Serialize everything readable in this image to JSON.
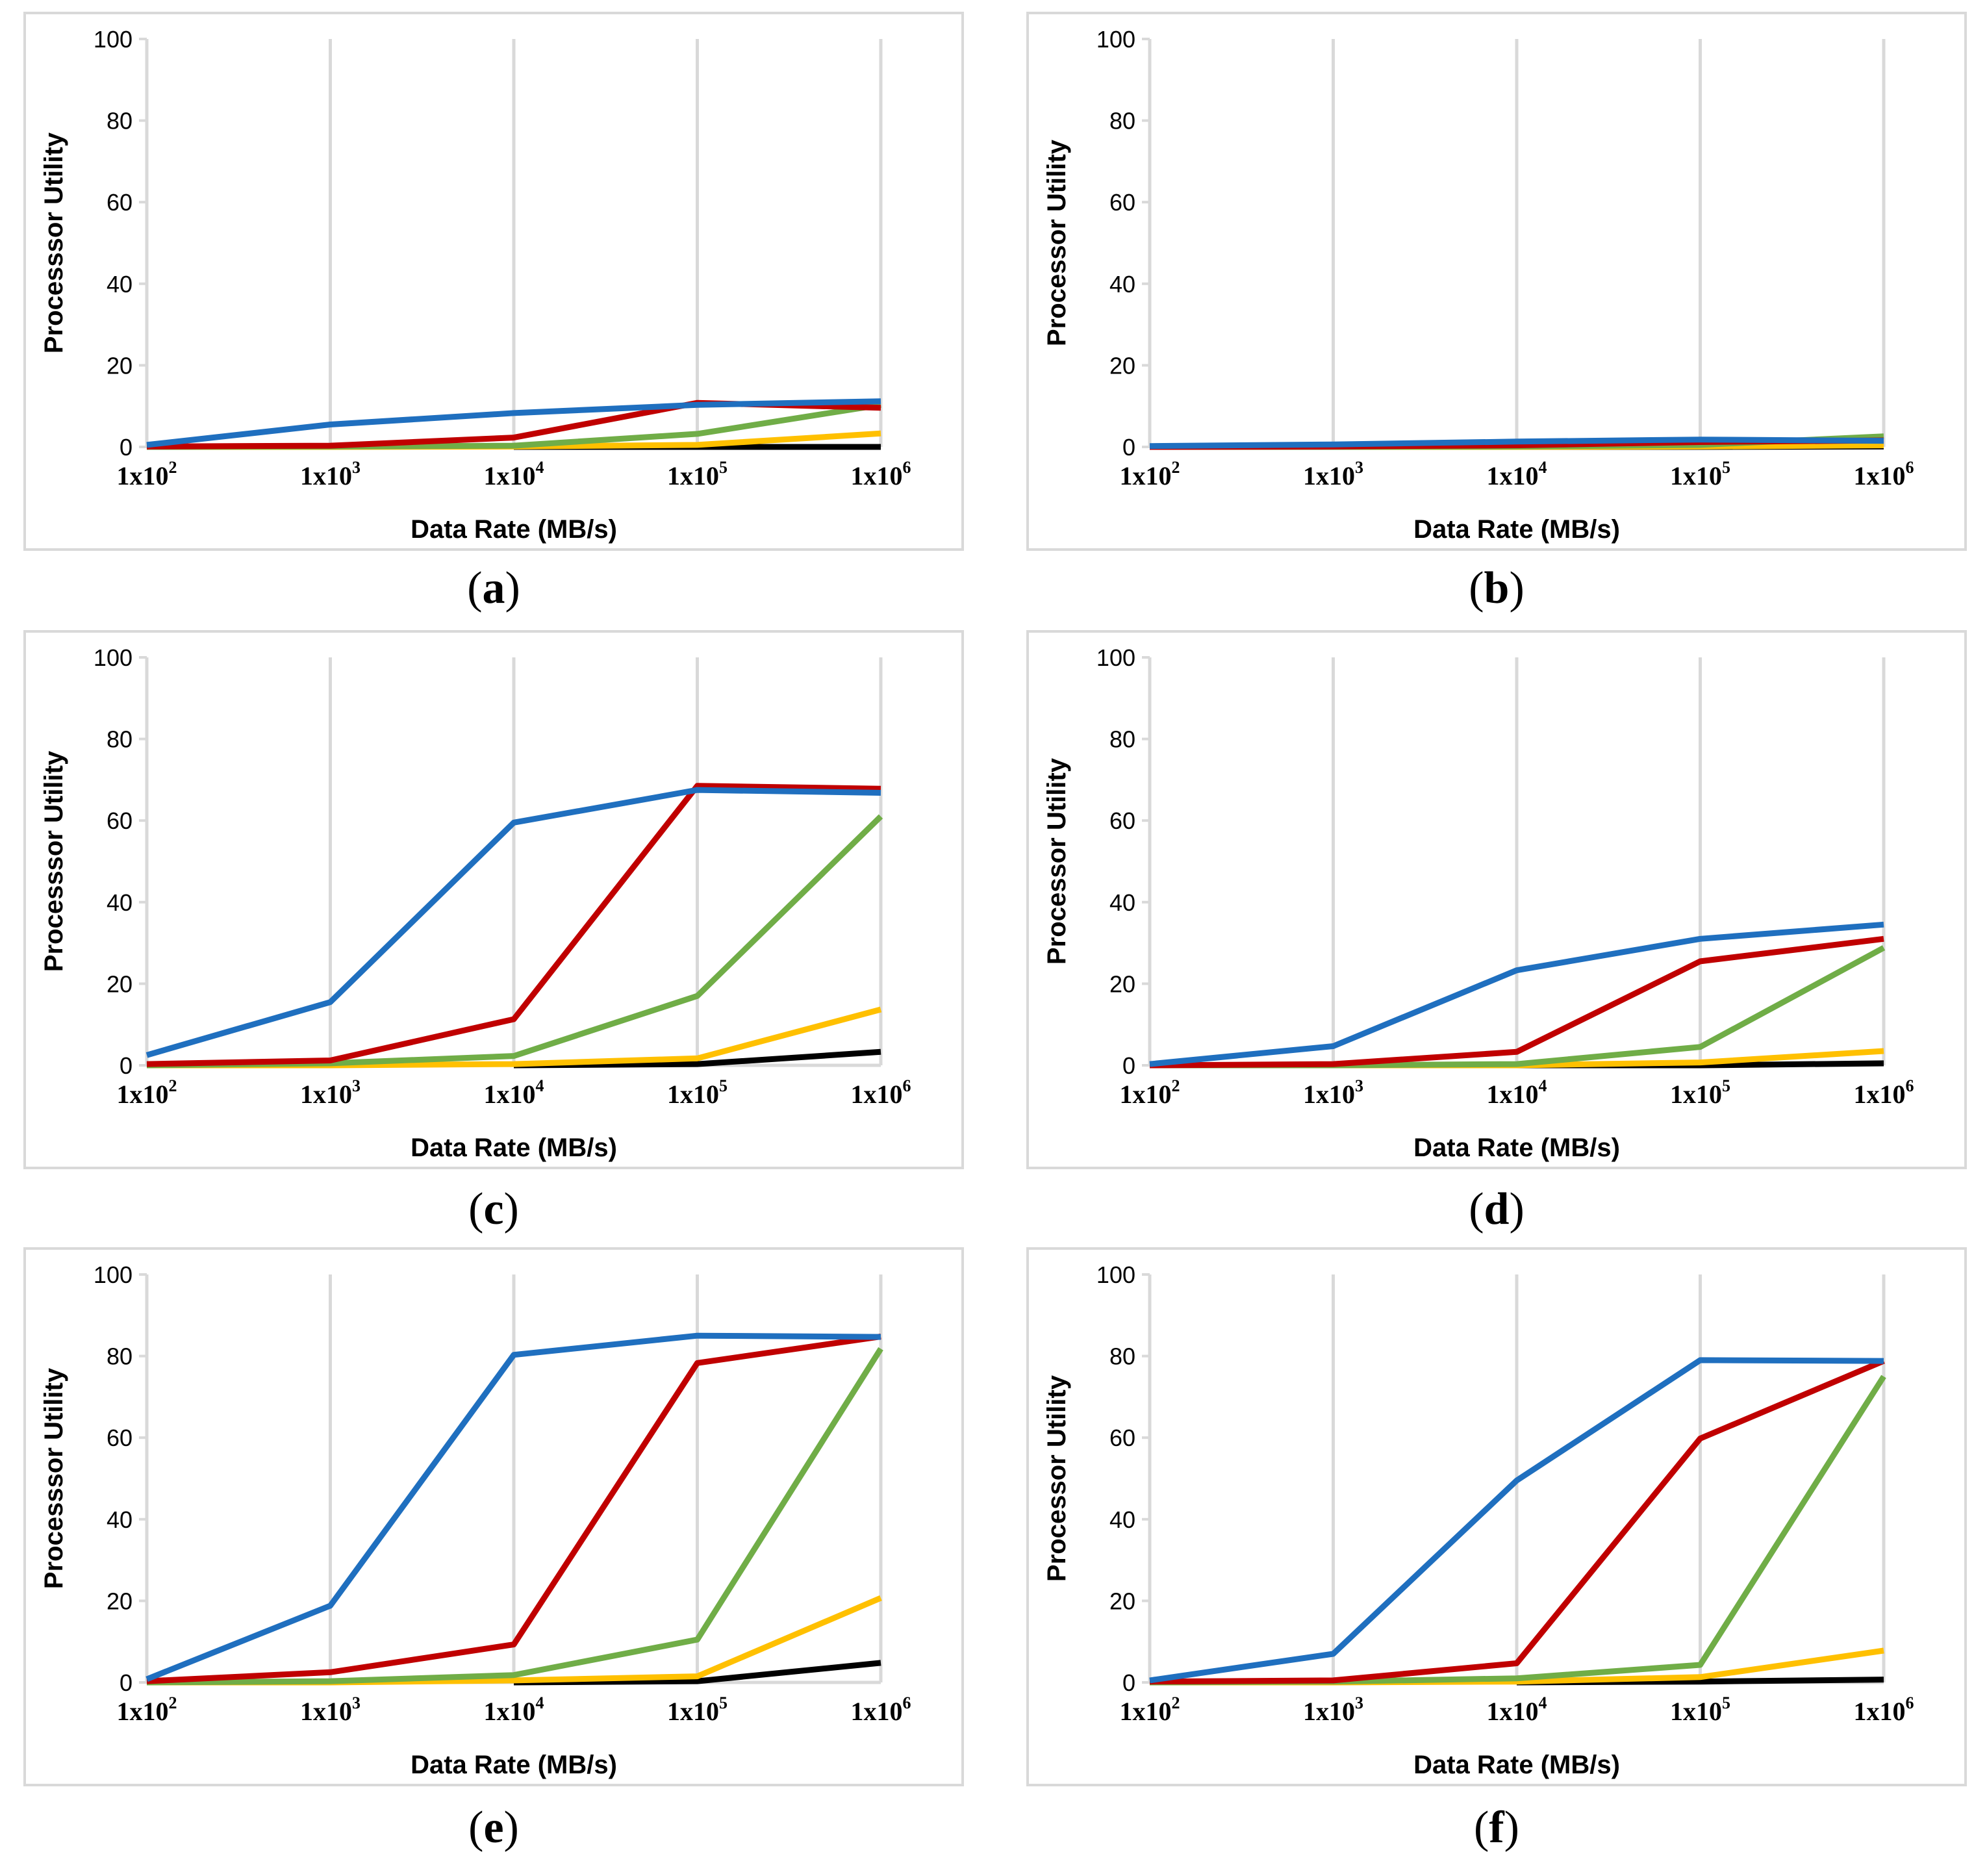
{
  "colors": {
    "blue": "#1f6fbf",
    "red": "#c00000",
    "green": "#70ad47",
    "yellow": "#ffc000",
    "black": "#000000",
    "grid": "#d9d9d9",
    "frame": "#d9d9d9"
  },
  "chart_data": [
    {
      "id": "a",
      "caption_letter": "a",
      "type": "line",
      "xlabel": "Data Rate (MB/s)",
      "ylabel": "Processsor Utility",
      "ylim": [
        0,
        100
      ],
      "yticks": [
        0,
        20,
        40,
        60,
        80,
        100
      ],
      "categories": [
        {
          "base": "1x10",
          "exp": "2"
        },
        {
          "base": "1x10",
          "exp": "3"
        },
        {
          "base": "1x10",
          "exp": "4"
        },
        {
          "base": "1x10",
          "exp": "5"
        },
        {
          "base": "1x10",
          "exp": "6"
        }
      ],
      "series": [
        {
          "name": "blue",
          "color": "blue",
          "values": [
            0.5,
            5.5,
            8.3,
            10.3,
            11.2
          ]
        },
        {
          "name": "red",
          "color": "red",
          "values": [
            0.1,
            0.3,
            2.3,
            10.8,
            9.6
          ]
        },
        {
          "name": "green",
          "color": "green",
          "values": [
            0,
            0.1,
            0.3,
            3.2,
            10.3
          ]
        },
        {
          "name": "yellow",
          "color": "yellow",
          "values": [
            0,
            0,
            0.1,
            0.5,
            3.3
          ]
        },
        {
          "name": "black",
          "color": "black",
          "values": [
            null,
            null,
            0,
            0,
            0
          ]
        }
      ]
    },
    {
      "id": "b",
      "caption_letter": "b",
      "type": "line",
      "xlabel": "Data Rate (MB/s)",
      "ylabel": "Processor Utility",
      "ylim": [
        0,
        100
      ],
      "yticks": [
        0,
        20,
        40,
        60,
        80,
        100
      ],
      "categories": [
        {
          "base": "1x10",
          "exp": "2"
        },
        {
          "base": "1x10",
          "exp": "3"
        },
        {
          "base": "1x10",
          "exp": "4"
        },
        {
          "base": "1x10",
          "exp": "5"
        },
        {
          "base": "1x10",
          "exp": "6"
        }
      ],
      "series": [
        {
          "name": "blue",
          "color": "blue",
          "values": [
            0.2,
            0.6,
            1.3,
            1.8,
            1.5
          ]
        },
        {
          "name": "red",
          "color": "red",
          "values": [
            0,
            0.1,
            0.4,
            1.2,
            1.6
          ]
        },
        {
          "name": "green",
          "color": "green",
          "values": [
            0,
            0,
            0.1,
            0.5,
            2.6
          ]
        },
        {
          "name": "yellow",
          "color": "yellow",
          "values": [
            0,
            0,
            0,
            0.1,
            0.4
          ]
        },
        {
          "name": "black",
          "color": "black",
          "values": [
            null,
            null,
            0,
            0,
            0.1
          ]
        }
      ]
    },
    {
      "id": "c",
      "caption_letter": "c",
      "type": "line",
      "xlabel": "Data Rate (MB/s)",
      "ylabel": "Processsor Utility",
      "ylim": [
        0,
        100
      ],
      "yticks": [
        0,
        20,
        40,
        60,
        80,
        100
      ],
      "categories": [
        {
          "base": "1x10",
          "exp": "2"
        },
        {
          "base": "1x10",
          "exp": "3"
        },
        {
          "base": "1x10",
          "exp": "4"
        },
        {
          "base": "1x10",
          "exp": "5"
        },
        {
          "base": "1x10",
          "exp": "6"
        }
      ],
      "series": [
        {
          "name": "blue",
          "color": "blue",
          "values": [
            2.5,
            15.5,
            59.5,
            67.5,
            66.8
          ]
        },
        {
          "name": "red",
          "color": "red",
          "values": [
            0.3,
            1.2,
            11.3,
            68.5,
            67.8
          ]
        },
        {
          "name": "green",
          "color": "green",
          "values": [
            0,
            0.5,
            2.3,
            17,
            61
          ]
        },
        {
          "name": "yellow",
          "color": "yellow",
          "values": [
            0,
            0,
            0.3,
            1.7,
            13.7
          ]
        },
        {
          "name": "black",
          "color": "black",
          "values": [
            null,
            null,
            0,
            0.3,
            3.3
          ]
        }
      ]
    },
    {
      "id": "d",
      "caption_letter": "d",
      "type": "line",
      "xlabel": "Data Rate (MB/s)",
      "ylabel": "Processor Utility",
      "ylim": [
        0,
        100
      ],
      "yticks": [
        0,
        20,
        40,
        60,
        80,
        100
      ],
      "categories": [
        {
          "base": "1x10",
          "exp": "2"
        },
        {
          "base": "1x10",
          "exp": "3"
        },
        {
          "base": "1x10",
          "exp": "4"
        },
        {
          "base": "1x10",
          "exp": "5"
        },
        {
          "base": "1x10",
          "exp": "6"
        }
      ],
      "series": [
        {
          "name": "blue",
          "color": "blue",
          "values": [
            0.3,
            4.7,
            23.3,
            31,
            34.5
          ]
        },
        {
          "name": "red",
          "color": "red",
          "values": [
            0,
            0.3,
            3.3,
            25.5,
            31
          ]
        },
        {
          "name": "green",
          "color": "green",
          "values": [
            0,
            0,
            0.3,
            4.5,
            28.8
          ]
        },
        {
          "name": "yellow",
          "color": "yellow",
          "values": [
            0,
            0,
            0,
            0.7,
            3.5
          ]
        },
        {
          "name": "black",
          "color": "black",
          "values": [
            null,
            null,
            0,
            0,
            0.5
          ]
        }
      ]
    },
    {
      "id": "e",
      "caption_letter": "e",
      "type": "line",
      "xlabel": "Data Rate (MB/s)",
      "ylabel": "Processsor Utility",
      "ylim": [
        0,
        100
      ],
      "yticks": [
        0,
        20,
        40,
        60,
        80,
        100
      ],
      "categories": [
        {
          "base": "1x10",
          "exp": "2"
        },
        {
          "base": "1x10",
          "exp": "3"
        },
        {
          "base": "1x10",
          "exp": "4"
        },
        {
          "base": "1x10",
          "exp": "5"
        },
        {
          "base": "1x10",
          "exp": "6"
        }
      ],
      "series": [
        {
          "name": "blue",
          "color": "blue",
          "values": [
            0.8,
            18.8,
            80.3,
            85,
            84.7
          ]
        },
        {
          "name": "red",
          "color": "red",
          "values": [
            0.3,
            2.5,
            9.3,
            78.3,
            84.8
          ]
        },
        {
          "name": "green",
          "color": "green",
          "values": [
            0,
            0.3,
            1.8,
            10.5,
            81.8
          ]
        },
        {
          "name": "yellow",
          "color": "yellow",
          "values": [
            0,
            0,
            0.5,
            1.5,
            20.7
          ]
        },
        {
          "name": "black",
          "color": "black",
          "values": [
            null,
            null,
            0,
            0.3,
            4.8
          ]
        }
      ]
    },
    {
      "id": "f",
      "caption_letter": "f",
      "type": "line",
      "xlabel": "Data Rate (MB/s)",
      "ylabel": "Processor Utility",
      "ylim": [
        0,
        100
      ],
      "yticks": [
        0,
        20,
        40,
        60,
        80,
        100
      ],
      "categories": [
        {
          "base": "1x10",
          "exp": "2"
        },
        {
          "base": "1x10",
          "exp": "3"
        },
        {
          "base": "1x10",
          "exp": "4"
        },
        {
          "base": "1x10",
          "exp": "5"
        },
        {
          "base": "1x10",
          "exp": "6"
        }
      ],
      "series": [
        {
          "name": "blue",
          "color": "blue",
          "values": [
            0.5,
            7,
            49.5,
            79,
            78.8
          ]
        },
        {
          "name": "red",
          "color": "red",
          "values": [
            0.2,
            0.5,
            4.7,
            59.8,
            78.8
          ]
        },
        {
          "name": "green",
          "color": "green",
          "values": [
            0,
            0.2,
            1,
            4.3,
            75
          ]
        },
        {
          "name": "yellow",
          "color": "yellow",
          "values": [
            0,
            0,
            0.2,
            1.3,
            7.8
          ]
        },
        {
          "name": "black",
          "color": "black",
          "values": [
            null,
            null,
            0,
            0.2,
            0.7
          ]
        }
      ]
    }
  ]
}
